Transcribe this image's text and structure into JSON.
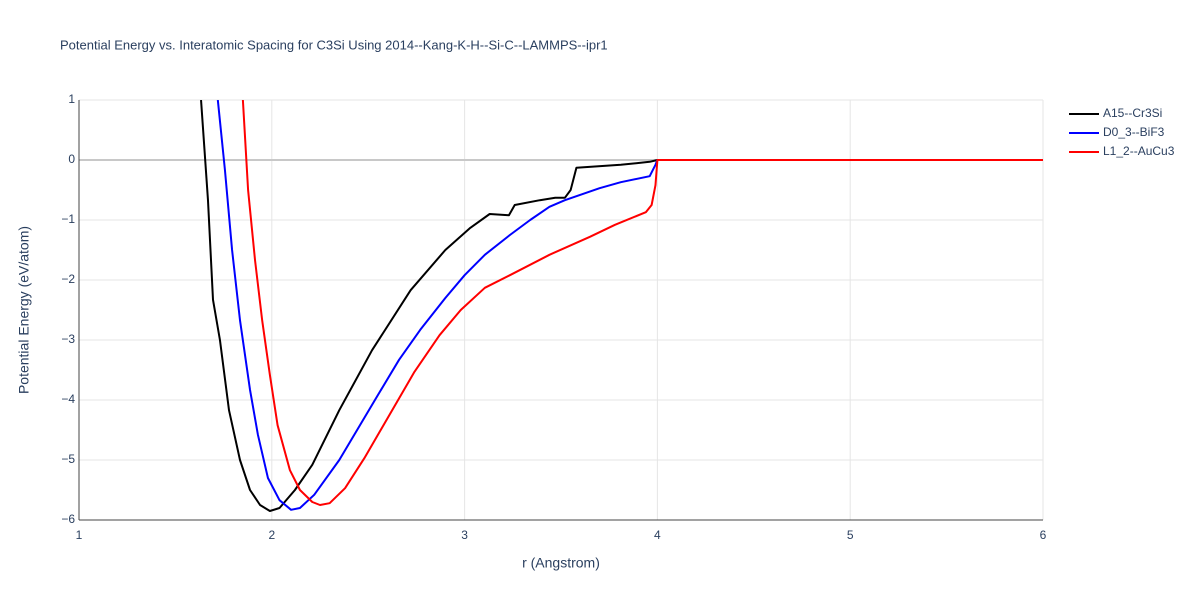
{
  "chart_data": {
    "type": "line",
    "title": "Potential Energy vs. Interatomic Spacing for C3Si Using 2014--Kang-K-H--Si-C--LAMMPS--ipr1",
    "x_label": "r (Angstrom)",
    "y_label": "Potential Energy (eV/atom)",
    "xlim": [
      1,
      6
    ],
    "xticks": [
      1,
      2,
      3,
      4,
      5,
      6
    ],
    "ylim": [
      -6,
      1
    ],
    "yticks": [
      {
        "value": -6,
        "label": "−6"
      },
      {
        "value": -5,
        "label": "−5"
      },
      {
        "value": -4,
        "label": "−4"
      },
      {
        "value": -3,
        "label": "−3"
      },
      {
        "value": -2,
        "label": "−2"
      },
      {
        "value": -1,
        "label": "−1"
      },
      0,
      1
    ],
    "grid": true,
    "legend": "right",
    "series": [
      {
        "name": "A15--Cr3Si",
        "color": "#000000",
        "x": [
          1.633,
          1.669,
          1.695,
          1.731,
          1.778,
          1.835,
          1.887,
          1.939,
          1.99,
          2.04,
          2.12,
          2.21,
          2.35,
          2.52,
          2.72,
          2.9,
          3.03,
          3.13,
          3.23,
          3.26,
          3.39,
          3.47,
          3.52,
          3.55,
          3.58,
          3.81,
          3.96,
          4,
          6
        ],
        "values": [
          1,
          -0.67,
          -2.33,
          -3,
          -4.17,
          -5,
          -5.5,
          -5.75,
          -5.85,
          -5.8,
          -5.5,
          -5.08,
          -4.17,
          -3.17,
          -2.17,
          -1.5,
          -1.13,
          -0.9,
          -0.92,
          -0.75,
          -0.67,
          -0.63,
          -0.63,
          -0.5,
          -0.13,
          -0.08,
          -0.03,
          0,
          0
        ]
      },
      {
        "name": "D0_3--BiF3",
        "color": "#0000ff",
        "x": [
          1.72,
          1.757,
          1.794,
          1.835,
          1.887,
          1.928,
          1.98,
          2.04,
          2.1,
          2.146,
          2.22,
          2.35,
          2.535,
          2.66,
          2.77,
          2.9,
          3.0,
          3.105,
          3.235,
          3.34,
          3.44,
          3.52,
          3.7,
          3.81,
          3.96,
          3.99,
          4,
          6
        ],
        "values": [
          1,
          -0.17,
          -1.5,
          -2.67,
          -3.83,
          -4.58,
          -5.3,
          -5.67,
          -5.83,
          -5.8,
          -5.58,
          -5,
          -4,
          -3.33,
          -2.83,
          -2.3,
          -1.92,
          -1.58,
          -1.25,
          -1.0,
          -0.78,
          -0.67,
          -0.47,
          -0.37,
          -0.27,
          -0.08,
          0,
          0
        ]
      },
      {
        "name": "L1_2--AuCu3",
        "color": "#ff0000",
        "x": [
          1.85,
          1.877,
          1.913,
          1.95,
          1.99,
          2.03,
          2.094,
          2.146,
          2.21,
          2.25,
          2.3,
          2.38,
          2.48,
          2.61,
          2.74,
          2.87,
          2.98,
          3.105,
          3.235,
          3.44,
          3.65,
          3.78,
          3.94,
          3.97,
          3.99,
          4,
          6
        ],
        "values": [
          1,
          -0.5,
          -1.67,
          -2.67,
          -3.58,
          -4.42,
          -5.17,
          -5.5,
          -5.7,
          -5.75,
          -5.72,
          -5.47,
          -4.97,
          -4.25,
          -3.53,
          -2.92,
          -2.5,
          -2.13,
          -1.92,
          -1.58,
          -1.28,
          -1.08,
          -0.87,
          -0.75,
          -0.42,
          0,
          0
        ]
      }
    ]
  }
}
